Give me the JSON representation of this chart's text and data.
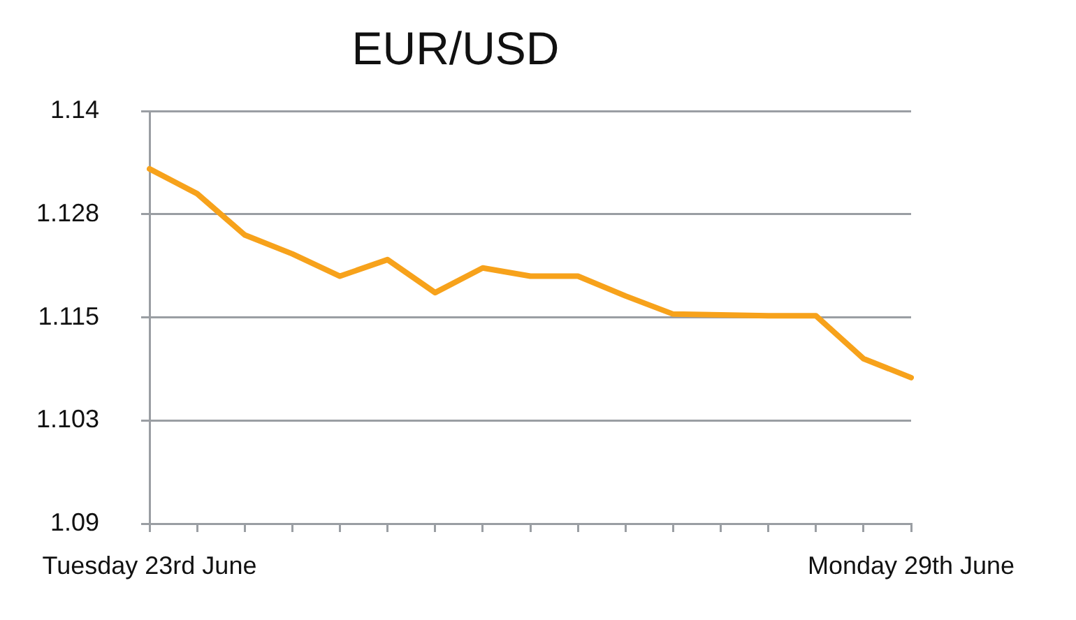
{
  "chart_data": {
    "type": "line",
    "title": "EUR/USD",
    "categories": [
      "Tuesday 23rd June",
      null,
      null,
      null,
      null,
      null,
      null,
      null,
      null,
      null,
      null,
      null,
      null,
      null,
      null,
      null,
      "Monday 29th June"
    ],
    "values": [
      1.133,
      1.13,
      1.125,
      1.1227,
      1.12,
      1.122,
      1.118,
      1.121,
      1.12,
      1.12,
      1.1176,
      1.1154,
      1.1153,
      1.1152,
      1.1152,
      1.11,
      1.1077
    ],
    "color": "#f7a21b",
    "ylim": [
      1.09,
      1.14
    ],
    "yticks": [
      1.09,
      {
        "value": 1.1025,
        "label": "1.103"
      },
      1.115,
      {
        "value": 1.1275,
        "label": "1.128"
      },
      1.14
    ],
    "grid": "y",
    "marker": "none",
    "line_style": "solid"
  }
}
